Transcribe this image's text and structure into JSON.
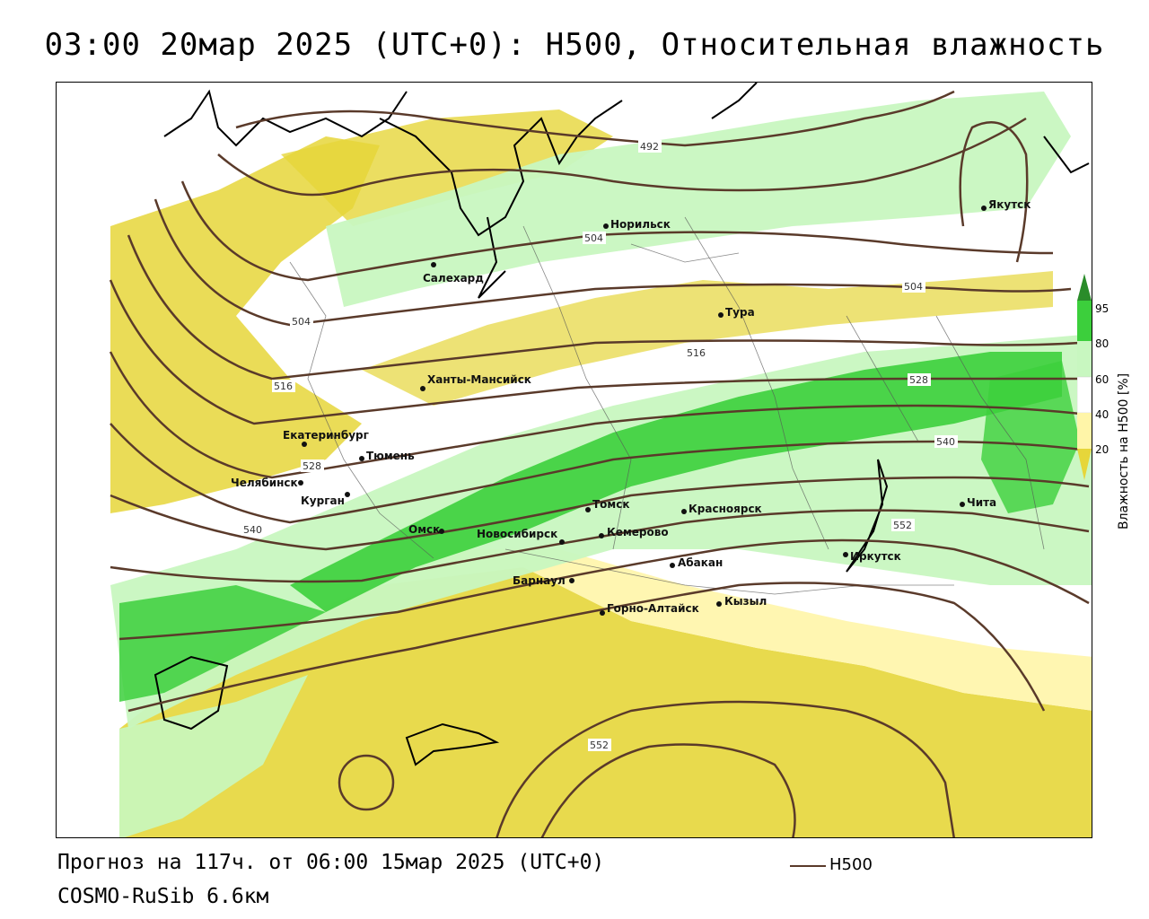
{
  "title": "03:00 20мар 2025 (UTC+0): H500, Относительная влажность",
  "footer": {
    "forecast": "Прогноз на 117ч. от 06:00 15мар 2025 (UTC+0)",
    "model": "COSMO-RuSib 6.6км",
    "legend_label": "H500"
  },
  "colorbar": {
    "title": "Влажность на H500 [%]",
    "ticks": [
      "95",
      "80",
      "60",
      "40",
      "20"
    ],
    "colors": {
      "above_95": "#2a8c2a",
      "80_95": "#3ccf3c",
      "60_80": "#c8f7c0",
      "40_60": "#ffffff",
      "20_40": "#fff5a8",
      "below_20": "#e6d63a"
    }
  },
  "colors": {
    "isoline": "#5a3a2a",
    "coast": "#000000",
    "borders": "#555555"
  },
  "isolines": [
    "492",
    "504",
    "504",
    "504",
    "516",
    "516",
    "528",
    "528",
    "540",
    "540",
    "552",
    "552"
  ],
  "cities": [
    {
      "name": "Якутск"
    },
    {
      "name": "Норильск"
    },
    {
      "name": "Салехард"
    },
    {
      "name": "Тура"
    },
    {
      "name": "Ханты-Мансийск"
    },
    {
      "name": "Екатеринбург"
    },
    {
      "name": "Тюмень"
    },
    {
      "name": "Челябинск"
    },
    {
      "name": "Курган"
    },
    {
      "name": "Омск"
    },
    {
      "name": "Томск"
    },
    {
      "name": "Новосибирск"
    },
    {
      "name": "Кемерово"
    },
    {
      "name": "Красноярск"
    },
    {
      "name": "Барнаул"
    },
    {
      "name": "Абакан"
    },
    {
      "name": "Горно-Алтайск"
    },
    {
      "name": "Кызыл"
    },
    {
      "name": "Иркутск"
    },
    {
      "name": "Чита"
    }
  ]
}
